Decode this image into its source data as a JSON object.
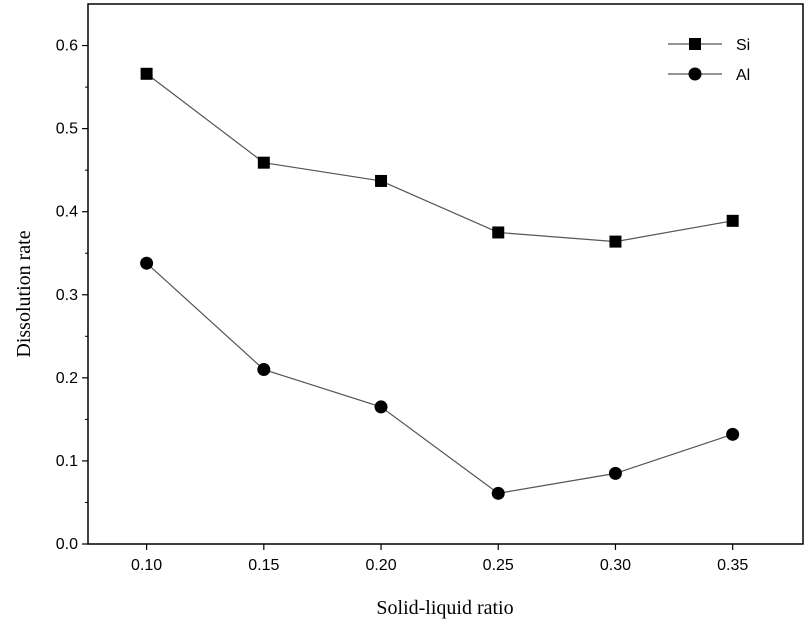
{
  "chart_data": {
    "type": "line",
    "title": "",
    "xlabel": "Solid-liquid ratio",
    "ylabel": "Dissolution rate",
    "x": [
      0.1,
      0.15,
      0.2,
      0.25,
      0.3,
      0.35
    ],
    "x_tick_labels": [
      "0.10",
      "0.15",
      "0.20",
      "0.25",
      "0.30",
      "0.35"
    ],
    "y_tick_labels": [
      "0.0",
      "0.1",
      "0.2",
      "0.3",
      "0.4",
      "0.5",
      "0.6"
    ],
    "xlim": [
      0.075,
      0.38
    ],
    "ylim": [
      0.0,
      0.65
    ],
    "grid": false,
    "legend_position": "top-right",
    "series": [
      {
        "name": "Si",
        "marker": "square",
        "values": [
          0.566,
          0.459,
          0.437,
          0.375,
          0.364,
          0.389
        ]
      },
      {
        "name": "Al",
        "marker": "circle",
        "values": [
          0.338,
          0.21,
          0.165,
          0.061,
          0.085,
          0.132
        ]
      }
    ],
    "colors": {
      "line": "#555555",
      "marker": "#000000",
      "axis": "#000000"
    }
  }
}
